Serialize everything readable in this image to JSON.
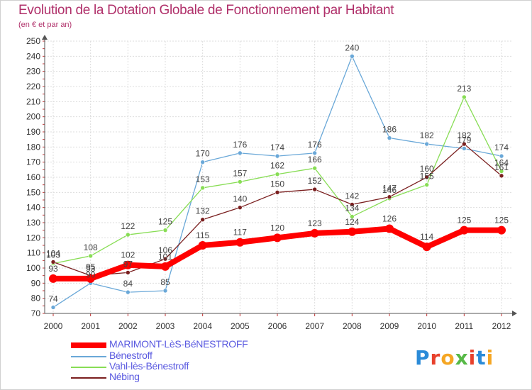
{
  "title": "Evolution de la Dotation Globale de Fonctionnement par Habitant",
  "subtitle": "(en € et par an)",
  "logo": {
    "text": "Proxiti",
    "letters": [
      {
        "ch": "P",
        "color": "#2a8bd8"
      },
      {
        "ch": "r",
        "color": "#e8412c"
      },
      {
        "ch": "o",
        "color": "#f5a623"
      },
      {
        "ch": "x",
        "color": "#57b947"
      },
      {
        "ch": "i",
        "color": "#e8412c"
      },
      {
        "ch": "t",
        "color": "#2a8bd8"
      },
      {
        "ch": "i",
        "color": "#f5a623"
      }
    ]
  },
  "chart_data": {
    "type": "line",
    "x": [
      2000,
      2001,
      2002,
      2003,
      2004,
      2005,
      2006,
      2007,
      2008,
      2009,
      2010,
      2011,
      2012
    ],
    "ylim": [
      70,
      250
    ],
    "yticks": [
      70,
      80,
      90,
      100,
      110,
      120,
      130,
      140,
      150,
      160,
      170,
      180,
      190,
      200,
      210,
      220,
      230,
      240,
      250
    ],
    "grid": true,
    "legend_position": "bottom-left",
    "series": [
      {
        "name": "MARIMONT-LèS-BéNESTROFF",
        "color": "#ff0000",
        "values": [
          93,
          93,
          102,
          101,
          115,
          117,
          120,
          123,
          124,
          126,
          114,
          125,
          125
        ]
      },
      {
        "name": "Bénestroff",
        "color": "#6aa8d8",
        "values": [
          74,
          90,
          84,
          85,
          170,
          176,
          174,
          176,
          240,
          186,
          182,
          179,
          174
        ]
      },
      {
        "name": "Vahl-lès-Bénestroff",
        "color": "#88dd55",
        "values": [
          103,
          108,
          122,
          125,
          153,
          157,
          162,
          166,
          134,
          146,
          155,
          213,
          164
        ]
      },
      {
        "name": "Nébing",
        "color": "#7a1f1f",
        "values": [
          104,
          95,
          97,
          106,
          132,
          140,
          150,
          152,
          142,
          147,
          160,
          182,
          161
        ]
      }
    ]
  }
}
